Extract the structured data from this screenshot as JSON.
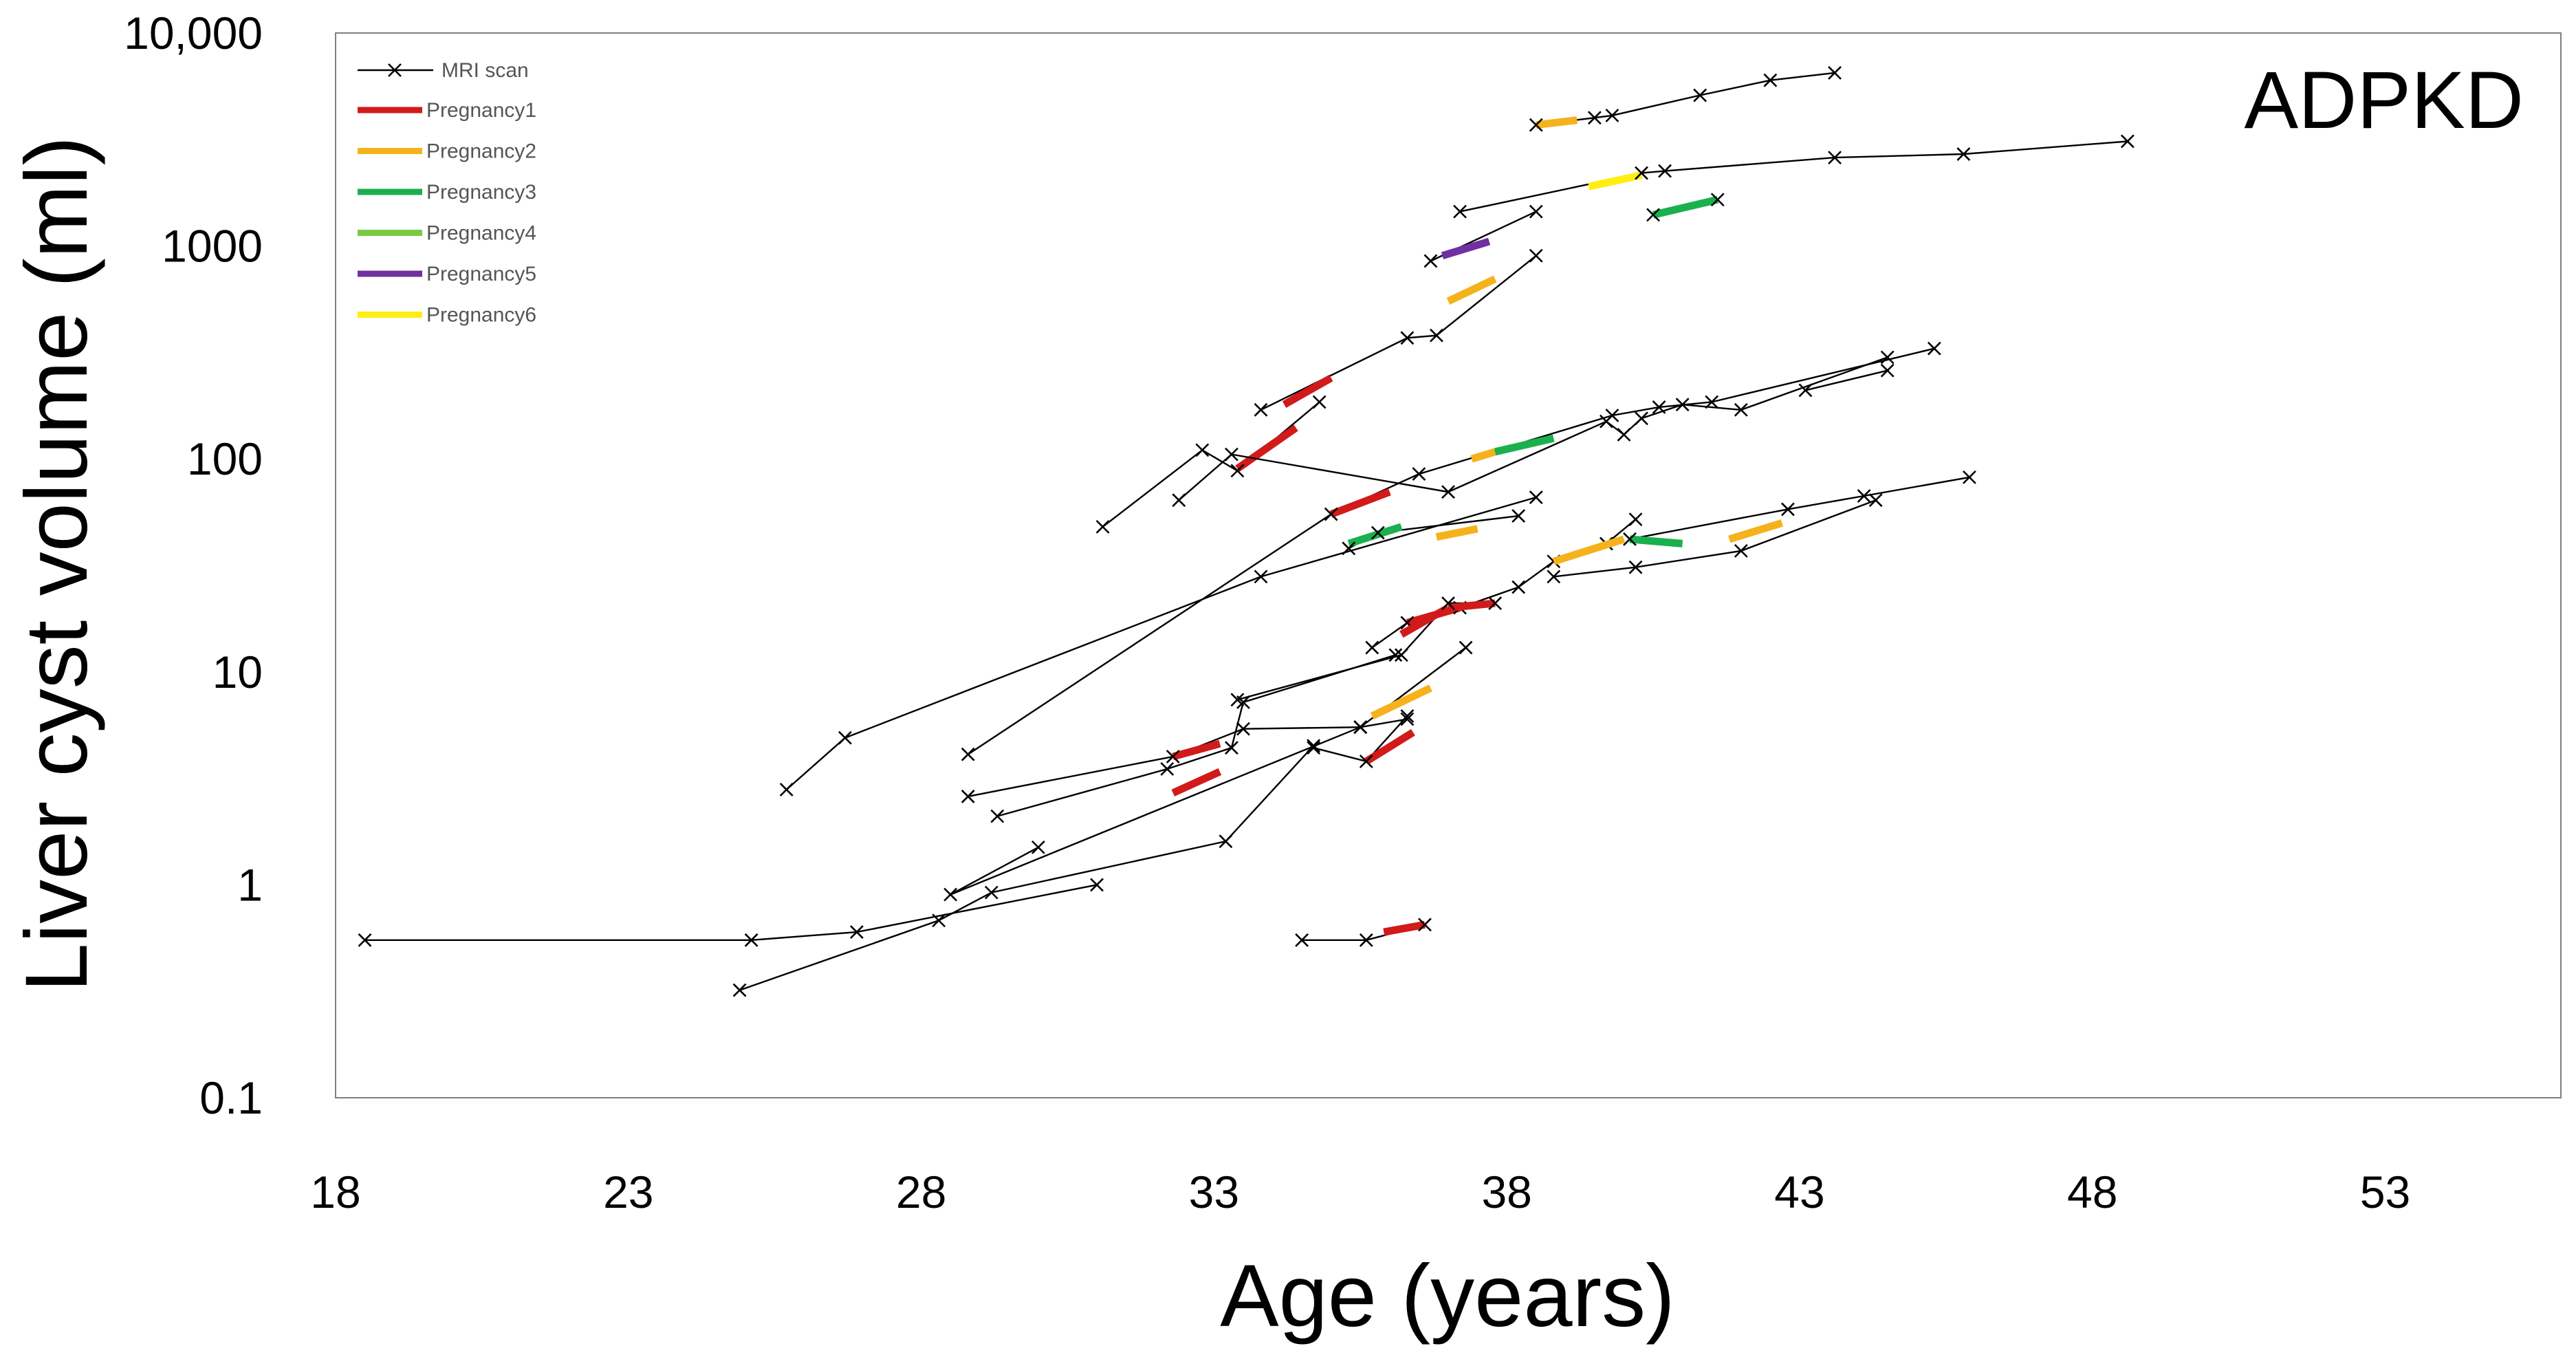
{
  "chart_data": {
    "type": "line",
    "panel_label": "ADPKD",
    "xlabel": "Age (years)",
    "ylabel": "Liver cyst volume (ml)",
    "xlim": [
      18,
      56
    ],
    "ylim": [
      0.1,
      10000
    ],
    "yscale": "log",
    "x_ticks": [
      18,
      23,
      28,
      33,
      38,
      43,
      48,
      53
    ],
    "y_ticks": [
      {
        "value": 0.1,
        "label": "0.1"
      },
      {
        "value": 1,
        "label": "1"
      },
      {
        "value": 10,
        "label": "10"
      },
      {
        "value": 100,
        "label": "100"
      },
      {
        "value": 1000,
        "label": "1000"
      },
      {
        "value": 10000,
        "label": "10,000"
      }
    ],
    "legend": {
      "position": "top-left",
      "scan_label": "MRI scan",
      "pregnancies": [
        {
          "key": "p1",
          "label": "Pregnancy1",
          "color": "#d11a1a"
        },
        {
          "key": "p2",
          "label": "Pregnancy2",
          "color": "#f5b21c"
        },
        {
          "key": "p3",
          "label": "Pregnancy3",
          "color": "#1bb04e"
        },
        {
          "key": "p4",
          "label": "Pregnancy4",
          "color": "#7ac943"
        },
        {
          "key": "p5",
          "label": "Pregnancy5",
          "color": "#7030a0"
        },
        {
          "key": "p6",
          "label": "Pregnancy6",
          "color": "#ffee11"
        }
      ]
    },
    "series": [
      {
        "name": "patient-a",
        "points": [
          [
            38.5,
            3700
          ],
          [
            39.5,
            4000
          ],
          [
            39.8,
            4100
          ],
          [
            41.3,
            5100
          ],
          [
            42.5,
            6000
          ],
          [
            43.6,
            6500
          ]
        ],
        "pregnancies": [
          {
            "key": "p2",
            "from": [
              38.5,
              3700
            ],
            "to": [
              39.2,
              3900
            ]
          }
        ]
      },
      {
        "name": "patient-b",
        "points": [
          [
            37.2,
            1450
          ],
          [
            40.3,
            2200
          ],
          [
            40.7,
            2250
          ],
          [
            43.6,
            2600
          ],
          [
            45.8,
            2700
          ],
          [
            48.6,
            3100
          ]
        ],
        "pregnancies": [
          {
            "key": "p6",
            "from": [
              39.4,
              1900
            ],
            "to": [
              40.3,
              2150
            ]
          }
        ]
      },
      {
        "name": "patient-b2",
        "points": [
          [
            40.5,
            1400
          ],
          [
            41.6,
            1650
          ]
        ],
        "pregnancies": [
          {
            "key": "p3",
            "from": [
              40.5,
              1400
            ],
            "to": [
              41.6,
              1650
            ]
          }
        ]
      },
      {
        "name": "patient-c",
        "points": [
          [
            33.8,
            170
          ],
          [
            36.3,
            370
          ],
          [
            36.8,
            380
          ],
          [
            38.5,
            900
          ]
        ],
        "pregnancies": [
          {
            "key": "p1",
            "from": [
              34.2,
              180
            ],
            "to": [
              35.0,
              240
            ]
          },
          {
            "key": "p2",
            "from": [
              37.0,
              550
            ],
            "to": [
              37.8,
              700
            ]
          }
        ]
      },
      {
        "name": "patient-d",
        "points": [
          [
            36.7,
            850
          ],
          [
            38.5,
            1450
          ]
        ],
        "pregnancies": [
          {
            "key": "p5",
            "from": [
              36.9,
              900
            ],
            "to": [
              37.7,
              1050
            ]
          }
        ]
      },
      {
        "name": "patient-e",
        "points": [
          [
            31.1,
            48
          ],
          [
            32.8,
            110
          ],
          [
            33.4,
            88
          ],
          [
            34.8,
            185
          ]
        ],
        "pregnancies": [
          {
            "key": "p1",
            "from": [
              33.4,
              90
            ],
            "to": [
              34.4,
              140
            ]
          }
        ]
      },
      {
        "name": "patient-f",
        "points": [
          [
            25.7,
            2.8
          ],
          [
            26.7,
            4.9
          ],
          [
            33.8,
            28
          ],
          [
            38.5,
            66
          ]
        ],
        "pregnancies": []
      },
      {
        "name": "patient-g",
        "points": [
          [
            28.8,
            4.1
          ],
          [
            35.0,
            55
          ],
          [
            36.5,
            85
          ],
          [
            39.8,
            160
          ],
          [
            40.6,
            175
          ],
          [
            41.5,
            185
          ],
          [
            45.3,
            330
          ]
        ],
        "pregnancies": [
          {
            "key": "p1",
            "from": [
              35.0,
              55
            ],
            "to": [
              36.0,
              70
            ]
          },
          {
            "key": "p2",
            "from": [
              37.4,
              100
            ],
            "to": [
              37.8,
              108
            ]
          },
          {
            "key": "p3",
            "from": [
              37.8,
              108
            ],
            "to": [
              38.8,
              125
            ]
          }
        ]
      },
      {
        "name": "patient-h",
        "points": [
          [
            32.4,
            64
          ],
          [
            33.3,
            105
          ],
          [
            37.0,
            70
          ],
          [
            39.7,
            150
          ],
          [
            40.0,
            130
          ],
          [
            40.3,
            155
          ],
          [
            41.0,
            180
          ],
          [
            42.0,
            170
          ],
          [
            44.5,
            300
          ]
        ],
        "pregnancies": []
      },
      {
        "name": "patient-h2",
        "points": [
          [
            43.1,
            210
          ],
          [
            44.5,
            260
          ]
        ],
        "pregnancies": []
      },
      {
        "name": "patient-i",
        "points": [
          [
            35.3,
            38
          ],
          [
            35.8,
            45
          ],
          [
            38.2,
            54
          ]
        ],
        "pregnancies": [
          {
            "key": "p3",
            "from": [
              35.3,
              40
            ],
            "to": [
              36.2,
              48
            ]
          },
          {
            "key": "p2",
            "from": [
              36.8,
              43
            ],
            "to": [
              37.5,
              47
            ]
          }
        ]
      },
      {
        "name": "patient-j",
        "points": [
          [
            35.7,
            13
          ],
          [
            36.3,
            17
          ],
          [
            37.2,
            20
          ],
          [
            38.2,
            25
          ],
          [
            38.8,
            33
          ],
          [
            39.7,
            40
          ],
          [
            40.2,
            52
          ]
        ],
        "pregnancies": [
          {
            "key": "p1",
            "from": [
              36.3,
              17
            ],
            "to": [
              37.2,
              20
            ]
          }
        ]
      },
      {
        "name": "patient-k",
        "points": [
          [
            33.4,
            7.4
          ],
          [
            36.2,
            12
          ],
          [
            37.0,
            21
          ],
          [
            37.8,
            21
          ]
        ],
        "pregnancies": [
          {
            "key": "p1",
            "from": [
              36.2,
              15
            ],
            "to": [
              37.0,
              20
            ]
          },
          {
            "key": "p1",
            "from": [
              37.0,
              20
            ],
            "to": [
              37.8,
              21
            ]
          }
        ]
      },
      {
        "name": "patient-l",
        "points": [
          [
            29.3,
            2.1
          ],
          [
            32.2,
            3.5
          ],
          [
            33.3,
            4.4
          ],
          [
            33.5,
            7.2
          ],
          [
            36.1,
            12
          ]
        ],
        "pregnancies": [
          {
            "key": "p1",
            "from": [
              32.3,
              2.7
            ],
            "to": [
              33.1,
              3.4
            ]
          }
        ]
      },
      {
        "name": "patient-m",
        "points": [
          [
            28.8,
            2.6
          ],
          [
            32.3,
            4.0
          ],
          [
            33.5,
            5.4
          ],
          [
            35.5,
            5.5
          ],
          [
            36.3,
            6.0
          ]
        ],
        "pregnancies": [
          {
            "key": "p1",
            "from": [
              32.3,
              4.0
            ],
            "to": [
              33.1,
              4.6
            ]
          }
        ]
      },
      {
        "name": "patient-n",
        "points": [
          [
            34.7,
            4.4
          ],
          [
            35.6,
            3.8
          ],
          [
            36.3,
            6.2
          ]
        ],
        "pregnancies": [
          {
            "key": "p1",
            "from": [
              35.6,
              3.8
            ],
            "to": [
              36.4,
              5.2
            ]
          }
        ]
      },
      {
        "name": "patient-o",
        "points": [
          [
            35.5,
            5.5
          ],
          [
            37.3,
            13
          ]
        ],
        "pregnancies": [
          {
            "key": "p2",
            "from": [
              35.7,
              6.2
            ],
            "to": [
              36.7,
              8.4
            ]
          }
        ]
      },
      {
        "name": "patient-p",
        "points": [
          [
            30.0,
            1.5
          ],
          [
            28.5,
            0.9
          ],
          [
            35.5,
            5.5
          ]
        ],
        "pregnancies": []
      },
      {
        "name": "patient-q",
        "points": [
          [
            24.9,
            0.32
          ],
          [
            28.3,
            0.68
          ],
          [
            29.2,
            0.92
          ],
          [
            33.2,
            1.6
          ],
          [
            34.7,
            4.5
          ]
        ],
        "pregnancies": []
      },
      {
        "name": "patient-r",
        "points": [
          [
            18.5,
            0.55
          ],
          [
            25.1,
            0.55
          ],
          [
            26.9,
            0.6
          ],
          [
            31.0,
            1.0
          ]
        ],
        "pregnancies": []
      },
      {
        "name": "patient-s",
        "points": [
          [
            34.5,
            0.55
          ],
          [
            35.6,
            0.55
          ],
          [
            36.6,
            0.65
          ]
        ],
        "pregnancies": [
          {
            "key": "p1",
            "from": [
              35.9,
              0.6
            ],
            "to": [
              36.6,
              0.65
            ]
          }
        ]
      },
      {
        "name": "patient-t",
        "points": [
          [
            38.8,
            28
          ],
          [
            40.2,
            31
          ],
          [
            42.0,
            37
          ],
          [
            44.3,
            64
          ]
        ],
        "pregnancies": [
          {
            "key": "p2",
            "from": [
              38.8,
              33
            ],
            "to": [
              40.0,
              42
            ]
          }
        ]
      },
      {
        "name": "patient-u",
        "points": [
          [
            40.1,
            42
          ],
          [
            42.8,
            58
          ],
          [
            44.1,
            67
          ],
          [
            45.9,
            82
          ]
        ],
        "pregnancies": [
          {
            "key": "p3",
            "from": [
              40.1,
              42
            ],
            "to": [
              41.0,
              40
            ]
          },
          {
            "key": "p2",
            "from": [
              41.8,
              42
            ],
            "to": [
              42.7,
              50
            ]
          }
        ]
      }
    ]
  }
}
